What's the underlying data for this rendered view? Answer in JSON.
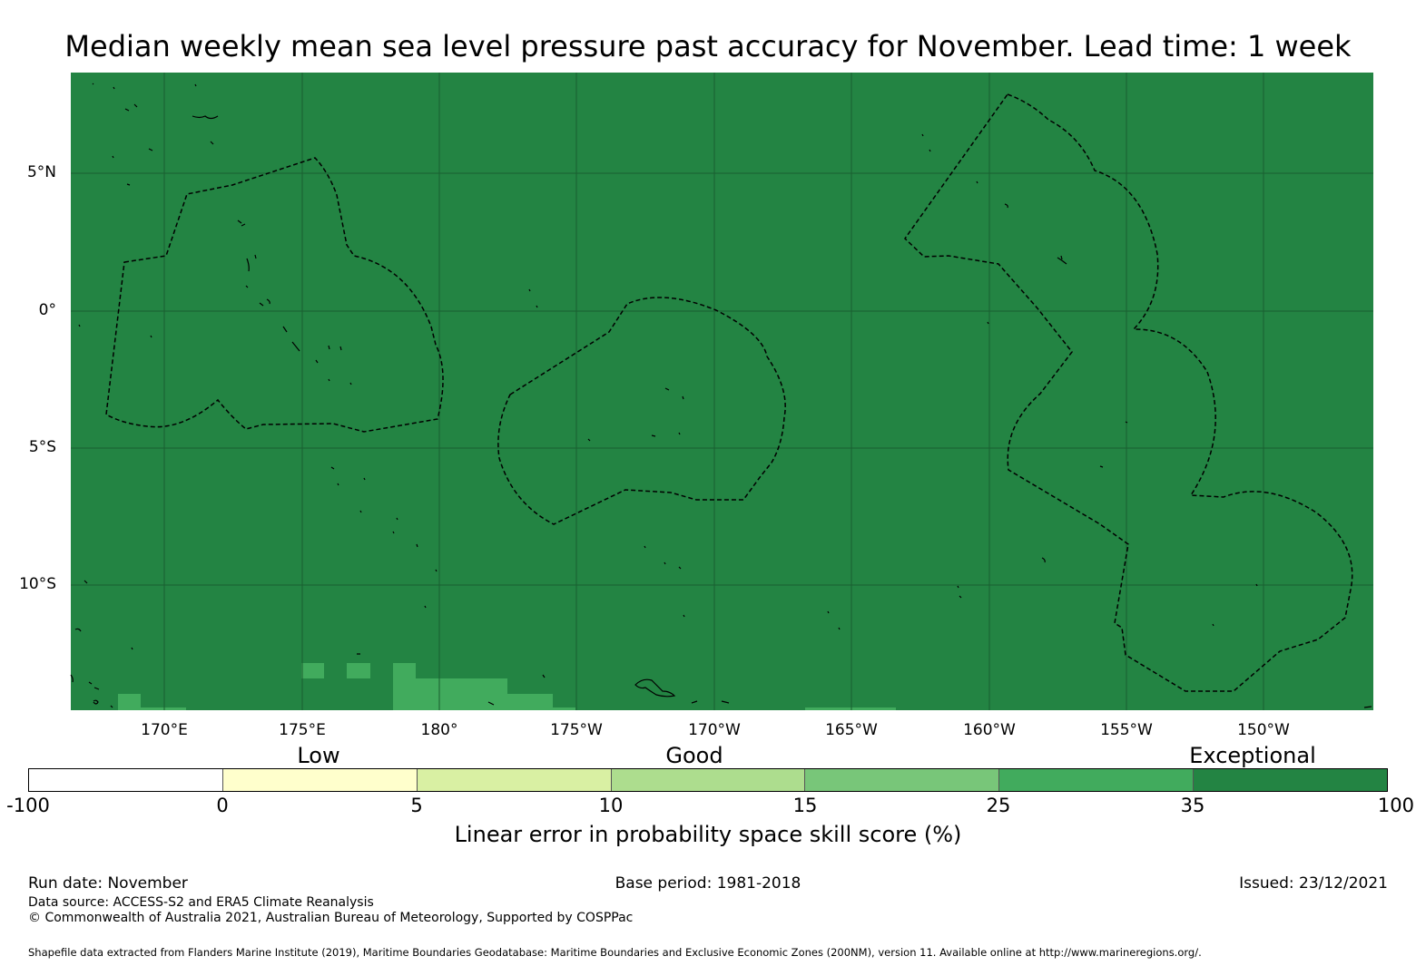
{
  "title": "Median weekly mean sea level pressure past accuracy for November. Lead time: 1 week",
  "map": {
    "lat_labels": [
      "5°N",
      "0°",
      "5°S",
      "10°S"
    ],
    "lon_labels": [
      "170°E",
      "175°E",
      "180°",
      "175°W",
      "170°W",
      "165°W",
      "160°W",
      "155°W",
      "150°W"
    ],
    "background_color": "#238443",
    "patch_color": "#41ab5d",
    "gridline_color": "#1a5e30",
    "boundary_style": "dashed black"
  },
  "colorbar": {
    "category_labels": [
      "Low",
      "Good",
      "Exceptional"
    ],
    "ticks": [
      "-100",
      "0",
      "5",
      "10",
      "15",
      "25",
      "35",
      "100"
    ],
    "colors": [
      "#ffffff",
      "#ffffcc",
      "#d9f0a3",
      "#addd8e",
      "#78c679",
      "#41ab5d",
      "#238443"
    ],
    "title": "Linear error in probability space skill score (%)"
  },
  "footer": {
    "run_date": "Run date: November",
    "base_period": "Base period: 1981-2018",
    "issued": "Issued: 23/12/2021",
    "data_source": "Data source: ACCESS-S2 and ERA5 Climate Reanalysis",
    "copyright": "© Commonwealth of Australia 2021, Australian Bureau of Meteorology, Supported by COSPPac",
    "shapefile_note": "Shapefile data extracted from Flanders Marine Institute (2019), Maritime Boundaries Geodatabase: Maritime Boundaries and Exclusive Economic Zones (200NM), version 11. Available online at http://www.marineregions.org/."
  }
}
